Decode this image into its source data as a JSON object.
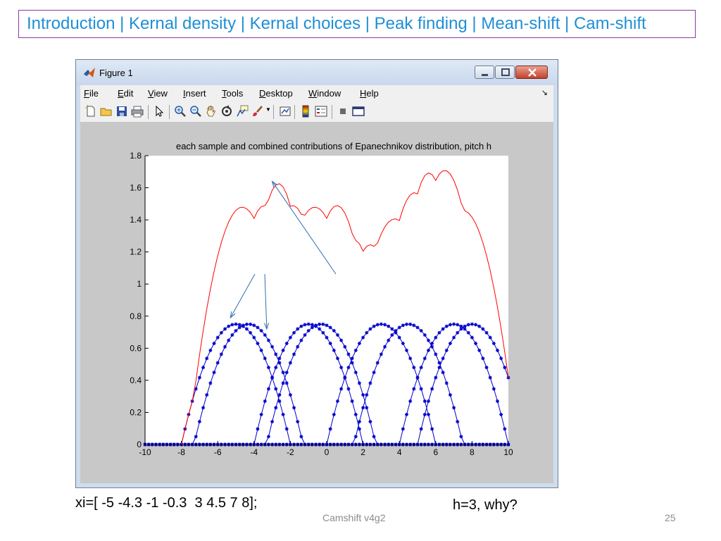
{
  "nav": {
    "items": [
      "Introduction",
      "Kernal density",
      "Kernal choices",
      "Peak finding",
      "Mean-shift",
      "Cam-shift"
    ],
    "separator": " | "
  },
  "window": {
    "title": "Figure 1",
    "menu": [
      {
        "accel": "F",
        "rest": "ile"
      },
      {
        "accel": "E",
        "rest": "dit"
      },
      {
        "accel": "V",
        "rest": "iew"
      },
      {
        "accel": "I",
        "rest": "nsert"
      },
      {
        "accel": "T",
        "rest": "ools"
      },
      {
        "accel": "D",
        "rest": "esktop"
      },
      {
        "accel": "W",
        "rest": "indow"
      },
      {
        "accel": "H",
        "rest": "elp"
      }
    ],
    "menu_overflow_icon": "dock-arrow-icon",
    "toolbar_icons": [
      "new-figure-icon",
      "open-file-icon",
      "save-icon",
      "print-icon",
      "pointer-icon",
      "zoom-in-icon",
      "zoom-out-icon",
      "pan-hand-icon",
      "rotate-3d-icon",
      "data-cursor-icon",
      "brush-icon",
      "link-plot-icon",
      "colorbar-icon",
      "legend-icon",
      "hide-plot-tools-icon",
      "show-plot-tools-icon"
    ],
    "colors": {
      "red_curve": "#ff0000",
      "blue_kernels": "#0000cc",
      "axes_bg": "#ffffff",
      "figure_bg": "#c8c8c8",
      "annotation_arrow": "#2f6fb0"
    }
  },
  "chart_data": {
    "type": "line",
    "title": "each sample and combined contributions of Epanechnikov distribution, pitch h",
    "xlim": [
      -10,
      10
    ],
    "ylim": [
      0,
      1.8
    ],
    "xticks": [
      -10,
      -8,
      -6,
      -4,
      -2,
      0,
      2,
      4,
      6,
      8,
      10
    ],
    "yticks": [
      0,
      0.2,
      0.4,
      0.6,
      0.8,
      1,
      1.2,
      1.4,
      1.6,
      1.8
    ],
    "kernel": "Epanechnikov",
    "h": 3,
    "samples": [
      -5,
      -4.3,
      -1,
      -0.3,
      3,
      4.5,
      7,
      8
    ],
    "kernel_peak": 0.75,
    "step": 0.2,
    "grid": false,
    "series": [
      {
        "role": "individual kernels",
        "color": "#0000cc",
        "marker": "star"
      },
      {
        "role": "combined sum",
        "color": "#ff0000",
        "marker": "none"
      }
    ]
  },
  "captions": {
    "left": "xi=[ -5 -4.3 -1 -0.3  3 4.5 7 8];",
    "right": "h=3, why?",
    "footer": "Camshift v4g2",
    "page": "25"
  }
}
